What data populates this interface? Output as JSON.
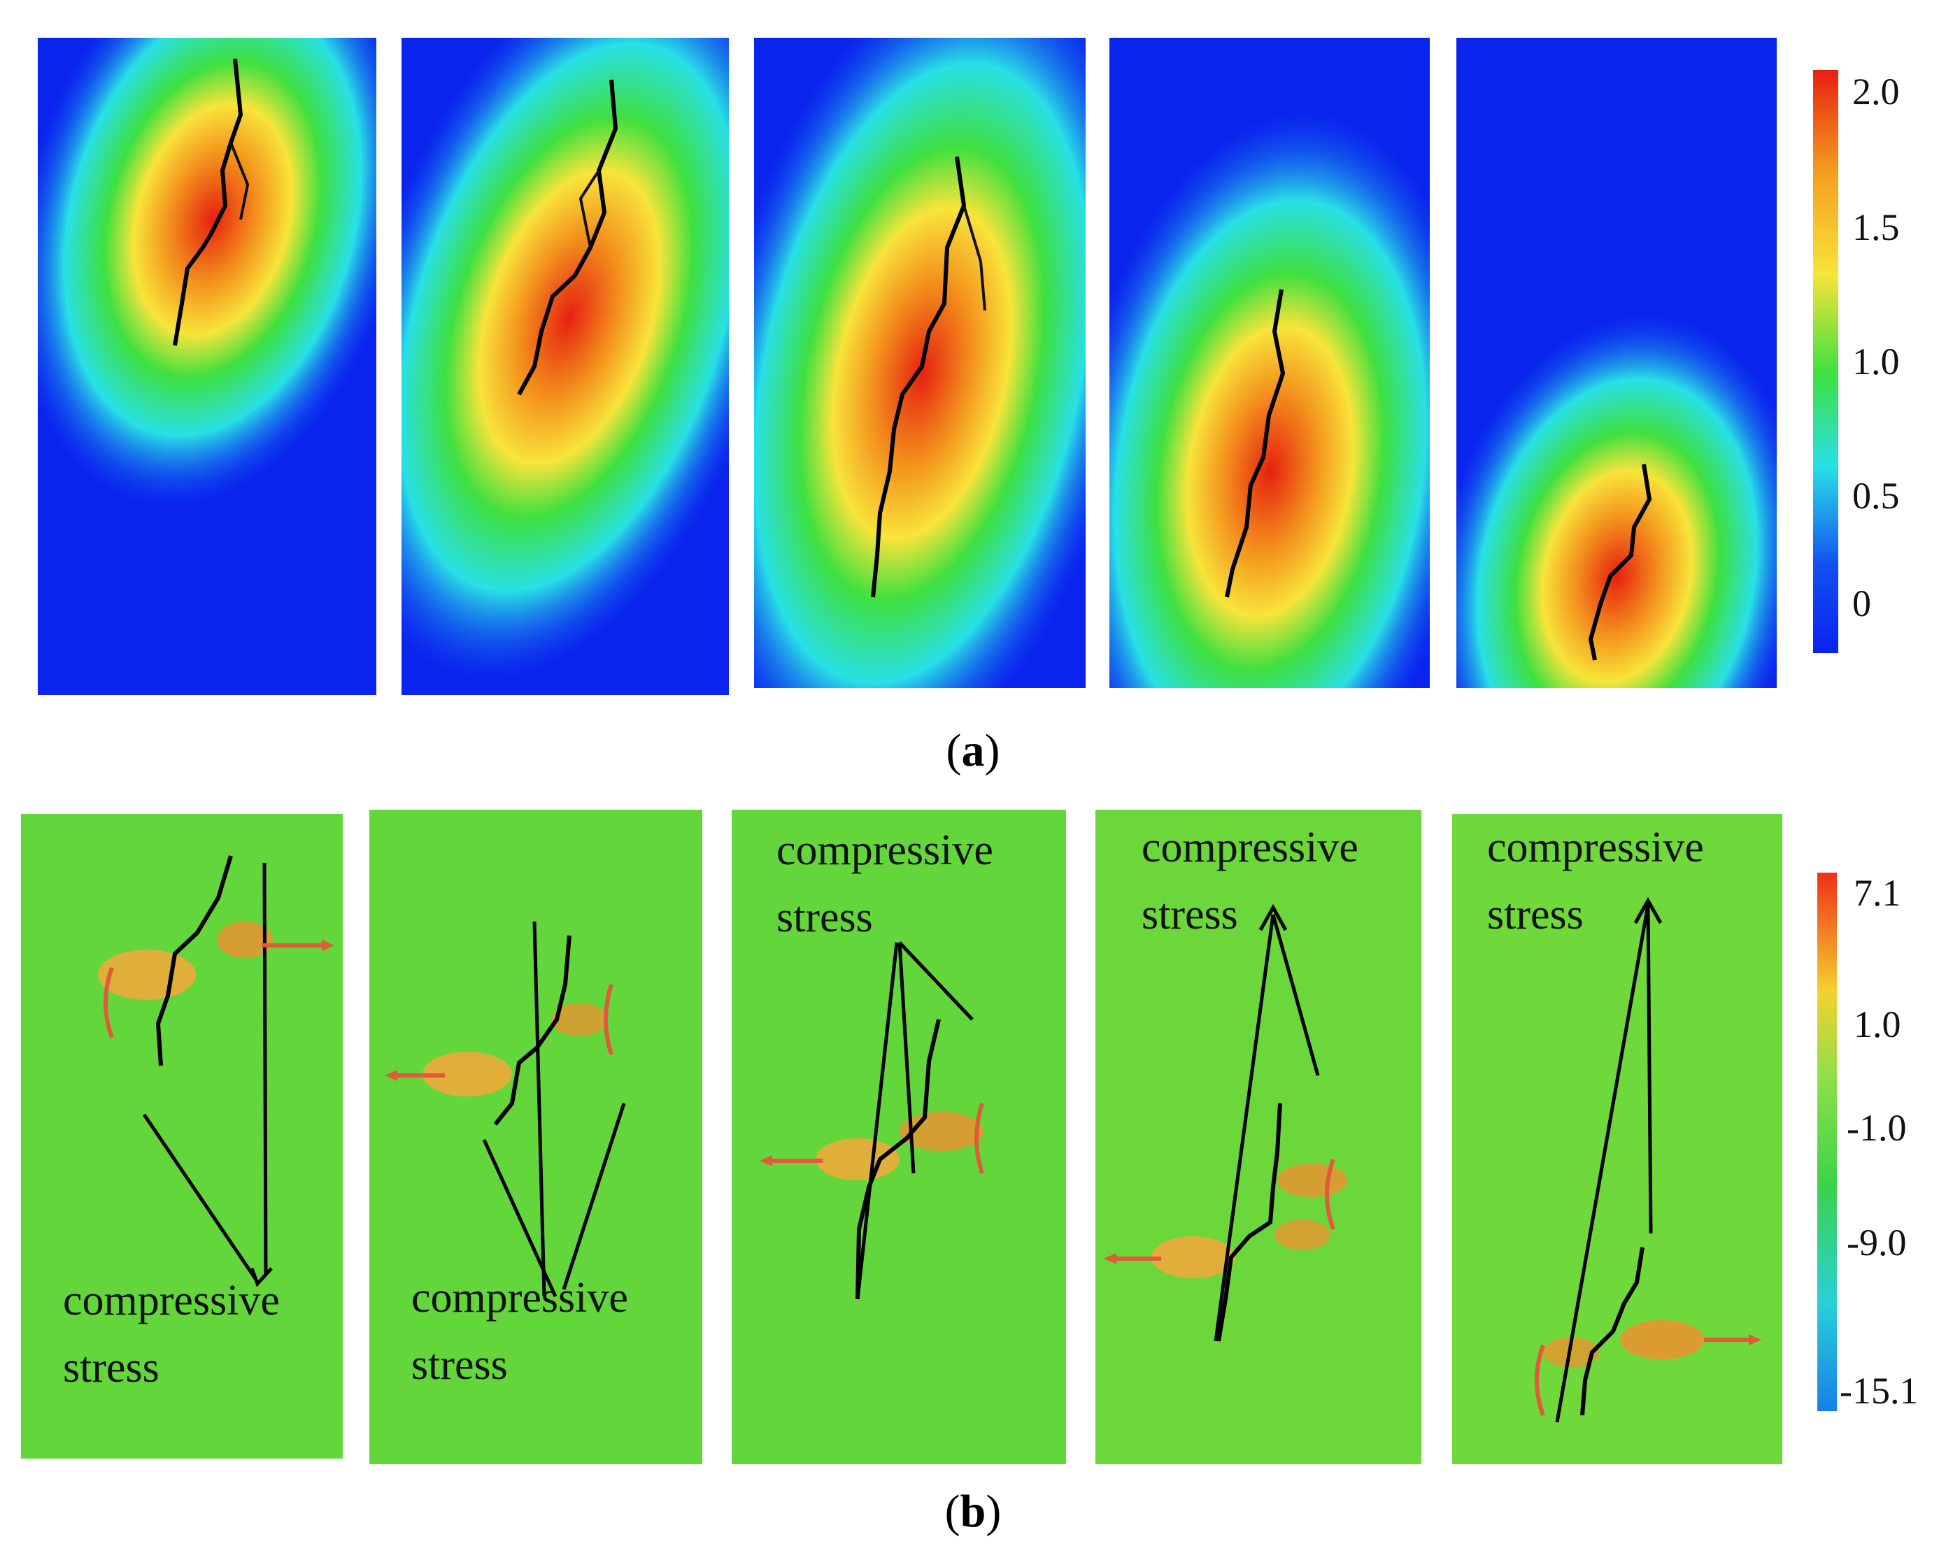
{
  "figure": {
    "caption_a": "a",
    "caption_b": "b"
  },
  "panel_a": {
    "colorbar": {
      "ticks": [
        "2.0",
        "1.5",
        "1.0",
        "0.5",
        "0"
      ],
      "colors": [
        "#e62010",
        "#f5a020",
        "#f8e43a",
        "#3ee040",
        "#29e0e6",
        "#1250f0",
        "#0a22f0"
      ]
    },
    "frames": [
      {
        "id": 1
      },
      {
        "id": 2
      },
      {
        "id": 3
      },
      {
        "id": 4
      },
      {
        "id": 5
      }
    ]
  },
  "panel_b": {
    "colorbar": {
      "ticks": [
        "7.1",
        "1.0",
        "-1.0",
        "-9.0",
        "-15.1"
      ],
      "colors": [
        "#f03018",
        "#f5d030",
        "#8ee048",
        "#3cd24a",
        "#28d0d8",
        "#1880e8"
      ]
    },
    "annotations": [
      {
        "line1": "compressive",
        "line2": "stress"
      },
      {
        "line1": "compressive",
        "line2": "stress"
      },
      {
        "line1": "compressive",
        "line2": "stress"
      },
      {
        "line1": "compressive",
        "line2": "stress"
      },
      {
        "line1": "compressive",
        "line2": "stress"
      }
    ]
  }
}
